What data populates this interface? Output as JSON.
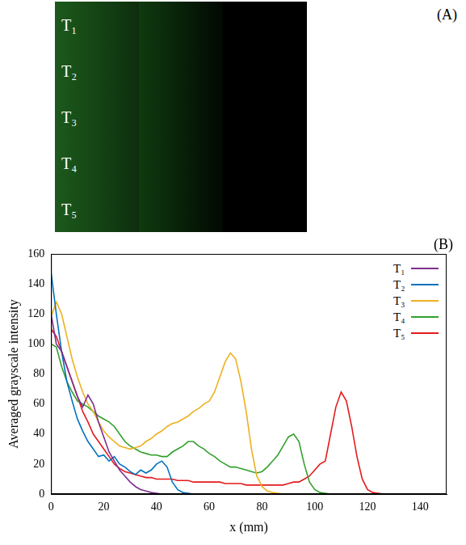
{
  "panel_a": {
    "label": "(A)",
    "rows": [
      "T₁",
      "T₂",
      "T₃",
      "T₄",
      "T₅"
    ]
  },
  "chart_data": {
    "type": "line",
    "annotations": [
      "(B)"
    ],
    "x_label": "x (mm)",
    "y_label": "Averaged grayscale intensity",
    "xlim": [
      0,
      150
    ],
    "xticks": [
      0,
      20,
      40,
      60,
      80,
      100,
      120,
      140
    ],
    "ylim": [
      0,
      160
    ],
    "yticks": [
      0,
      20,
      40,
      60,
      80,
      100,
      120,
      140,
      160
    ],
    "grid": false,
    "legend": "top-right",
    "x": [
      0,
      2,
      4,
      6,
      8,
      10,
      12,
      14,
      16,
      18,
      20,
      22,
      24,
      26,
      28,
      30,
      32,
      34,
      36,
      38,
      40,
      42,
      44,
      46,
      48,
      50,
      52,
      54,
      56,
      58,
      60,
      62,
      64,
      66,
      68,
      70,
      72,
      74,
      76,
      78,
      80,
      82,
      84,
      86,
      88,
      90,
      92,
      94,
      96,
      98,
      100,
      102,
      104,
      106,
      108,
      110,
      112,
      114,
      116,
      118,
      120,
      122,
      124,
      126,
      128,
      130,
      132,
      134,
      136,
      138,
      140,
      142,
      144,
      146,
      148,
      150
    ],
    "series": [
      {
        "name": "T₁",
        "color": "#7e2f8e",
        "values": [
          120,
          100,
          95,
          85,
          75,
          65,
          58,
          66,
          60,
          48,
          38,
          28,
          22,
          16,
          12,
          8,
          5,
          3,
          2,
          1,
          0.5,
          0,
          0,
          0,
          0,
          0,
          0,
          0,
          0,
          0,
          0,
          0,
          0,
          0,
          0,
          0,
          0,
          0,
          0,
          0,
          0,
          0,
          0,
          0,
          0,
          0,
          0,
          0,
          0,
          0,
          0,
          0,
          0,
          0,
          0,
          0,
          0,
          0,
          0,
          0,
          0,
          0,
          0,
          0,
          0,
          0,
          0,
          0,
          0,
          0,
          0,
          0,
          0,
          0,
          0,
          0
        ]
      },
      {
        "name": "T₂",
        "color": "#0072bd",
        "values": [
          148,
          120,
          95,
          75,
          62,
          50,
          42,
          35,
          30,
          25,
          26,
          22,
          25,
          20,
          18,
          15,
          13,
          16,
          14,
          16,
          20,
          22,
          18,
          8,
          3,
          1,
          0.5,
          0,
          0,
          0,
          0,
          0,
          0,
          0,
          0,
          0,
          0,
          0,
          0,
          0,
          0,
          0,
          0,
          0,
          0,
          0,
          0,
          0,
          0,
          0,
          0,
          0,
          0,
          0,
          0,
          0,
          0,
          0,
          0,
          0,
          0,
          0,
          0,
          0,
          0,
          0,
          0,
          0,
          0,
          0,
          0,
          0,
          0,
          0,
          0,
          0
        ]
      },
      {
        "name": "T₃",
        "color": "#edb120",
        "values": [
          118,
          128,
          120,
          105,
          90,
          78,
          68,
          60,
          55,
          48,
          42,
          38,
          35,
          32,
          31,
          30,
          31,
          32,
          35,
          37,
          40,
          42,
          45,
          47,
          48,
          50,
          52,
          55,
          57,
          60,
          62,
          68,
          78,
          88,
          94,
          90,
          75,
          55,
          30,
          12,
          5,
          2,
          1,
          0.5,
          0,
          0,
          0,
          0,
          0,
          0,
          0,
          0,
          0,
          0,
          0,
          0,
          0,
          0,
          0,
          0,
          0,
          0,
          0,
          0,
          0,
          0,
          0,
          0,
          0,
          0,
          0,
          0,
          0,
          0,
          0,
          0
        ]
      },
      {
        "name": "T₄",
        "color": "#33a02c",
        "values": [
          100,
          98,
          85,
          75,
          68,
          62,
          60,
          58,
          55,
          52,
          50,
          48,
          45,
          40,
          35,
          32,
          30,
          28,
          27,
          26,
          26,
          25,
          25,
          28,
          30,
          32,
          35,
          35,
          32,
          30,
          27,
          25,
          22,
          20,
          18,
          18,
          17,
          16,
          15,
          14,
          15,
          18,
          22,
          26,
          32,
          38,
          40,
          35,
          20,
          8,
          3,
          1,
          0.5,
          0,
          0,
          0,
          0,
          0,
          0,
          0,
          0,
          0,
          0,
          0,
          0,
          0,
          0,
          0,
          0,
          0,
          0,
          0,
          0,
          0,
          0,
          0
        ]
      },
      {
        "name": "T₅",
        "color": "#e41a1c",
        "values": [
          110,
          105,
          95,
          85,
          75,
          65,
          55,
          48,
          40,
          35,
          30,
          25,
          20,
          17,
          15,
          14,
          13,
          12,
          11,
          11,
          10,
          10,
          10,
          10,
          9,
          9,
          9,
          8,
          8,
          8,
          8,
          8,
          8,
          7,
          7,
          7,
          7,
          6,
          6,
          6,
          6,
          6,
          6,
          6,
          6,
          7,
          8,
          8,
          10,
          12,
          16,
          20,
          22,
          40,
          58,
          68,
          62,
          45,
          25,
          10,
          3,
          1,
          0.5,
          0,
          0,
          0,
          0,
          0,
          0,
          0,
          0,
          0,
          0,
          0,
          0,
          0
        ]
      }
    ]
  }
}
